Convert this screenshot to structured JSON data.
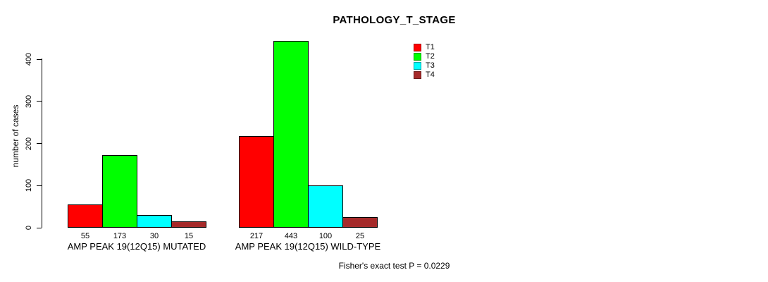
{
  "chart_data": {
    "type": "bar",
    "title": "PATHOLOGY_T_STAGE",
    "ylabel": "number of cases",
    "xlabel": "",
    "ylim": [
      0,
      400
    ],
    "yticks": [
      0,
      100,
      200,
      300,
      400
    ],
    "grid": false,
    "categories": [
      "AMP PEAK 19(12Q15) MUTATED",
      "AMP PEAK 19(12Q15) WILD-TYPE"
    ],
    "series": [
      {
        "name": "T1",
        "color": "#ff0000",
        "values": [
          55,
          217
        ]
      },
      {
        "name": "T2",
        "color": "#00ff00",
        "values": [
          173,
          443
        ]
      },
      {
        "name": "T3",
        "color": "#00ffff",
        "values": [
          30,
          100
        ]
      },
      {
        "name": "T4",
        "color": "#a52a2a",
        "values": [
          15,
          25
        ]
      }
    ],
    "bar_value_labels": [
      [
        55,
        173,
        30,
        15
      ],
      [
        217,
        443,
        100,
        25
      ]
    ],
    "legend": {
      "position": "top-right",
      "entries": [
        "T1",
        "T2",
        "T3",
        "T4"
      ]
    },
    "footer": "Fisher's exact test P = 0.0229"
  }
}
